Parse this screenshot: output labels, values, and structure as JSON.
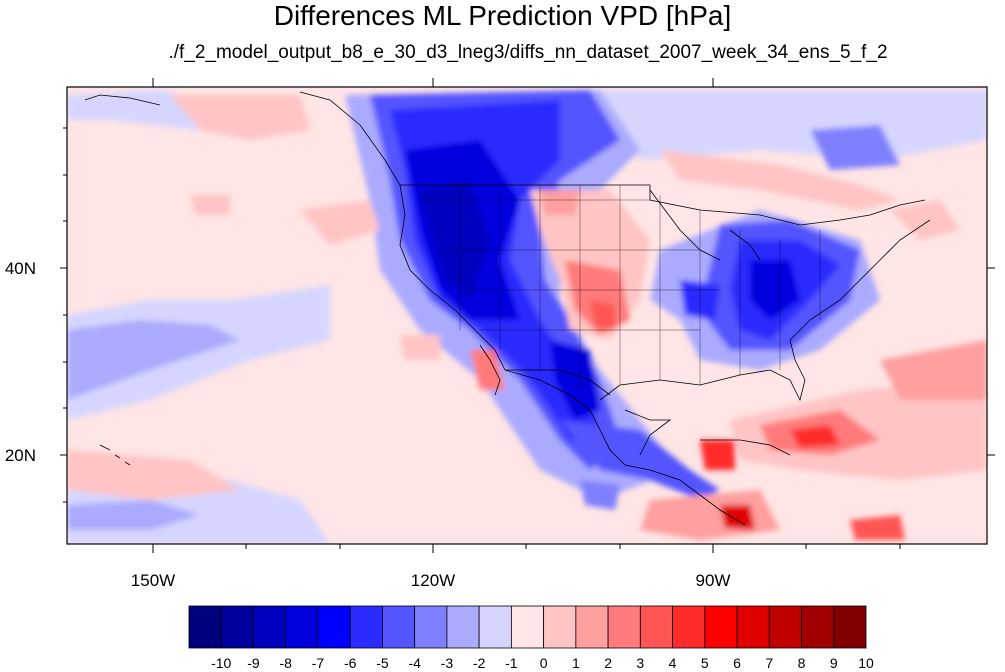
{
  "title": "Differences ML Prediction VPD [hPa]",
  "subtitle": "./f_2_model_output_b8_e_30_d3_lneg3/diffs_nn_dataset_2007_week_34_ens_5_f_2",
  "map": {
    "lon_labels": [
      "150W",
      "120W",
      "90W"
    ],
    "lat_labels": [
      "40N",
      "20N"
    ]
  },
  "colorbar": {
    "labels": [
      "-10",
      "-9",
      "-8",
      "-7",
      "-6",
      "-5",
      "-4",
      "-3",
      "-2",
      "-1",
      "0",
      "1",
      "2",
      "3",
      "4",
      "5",
      "6",
      "7",
      "8",
      "9",
      "10"
    ],
    "colors": [
      "#00007f",
      "#00009f",
      "#0000bf",
      "#0000df",
      "#0000ff",
      "#2b2bff",
      "#5555ff",
      "#8080ff",
      "#aaaaff",
      "#d5d5ff",
      "#ffe5e5",
      "#ffc4c4",
      "#ff9f9f",
      "#ff7a7a",
      "#ff5555",
      "#ff2a2a",
      "#ff0000",
      "#e00000",
      "#c00000",
      "#a00000",
      "#800000"
    ]
  }
}
